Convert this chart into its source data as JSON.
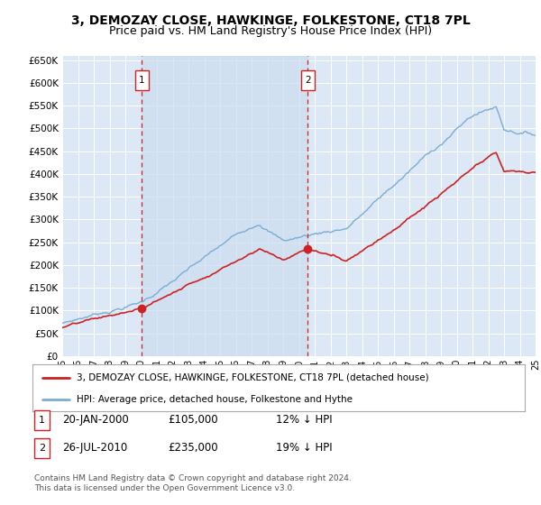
{
  "title": "3, DEMOZAY CLOSE, HAWKINGE, FOLKESTONE, CT18 7PL",
  "subtitle": "Price paid vs. HM Land Registry's House Price Index (HPI)",
  "ylim": [
    0,
    660000
  ],
  "yticks": [
    0,
    50000,
    100000,
    150000,
    200000,
    250000,
    300000,
    350000,
    400000,
    450000,
    500000,
    550000,
    600000,
    650000
  ],
  "background_color": "#dce8f5",
  "grid_color": "#ffffff",
  "hpi_color": "#7aadd4",
  "price_color": "#cc2222",
  "vline_color": "#cc2222",
  "shade_color": "#ccddf0",
  "sale1_year": 2000.05,
  "sale1_price": 105000,
  "sale2_year": 2010.57,
  "sale2_price": 235000,
  "legend_label_price": "3, DEMOZAY CLOSE, HAWKINGE, FOLKESTONE, CT18 7PL (detached house)",
  "legend_label_hpi": "HPI: Average price, detached house, Folkestone and Hythe",
  "footnote": "Contains HM Land Registry data © Crown copyright and database right 2024.\nThis data is licensed under the Open Government Licence v3.0.",
  "xstart": 1995,
  "xend": 2025,
  "title_fontsize": 10,
  "subtitle_fontsize": 9
}
